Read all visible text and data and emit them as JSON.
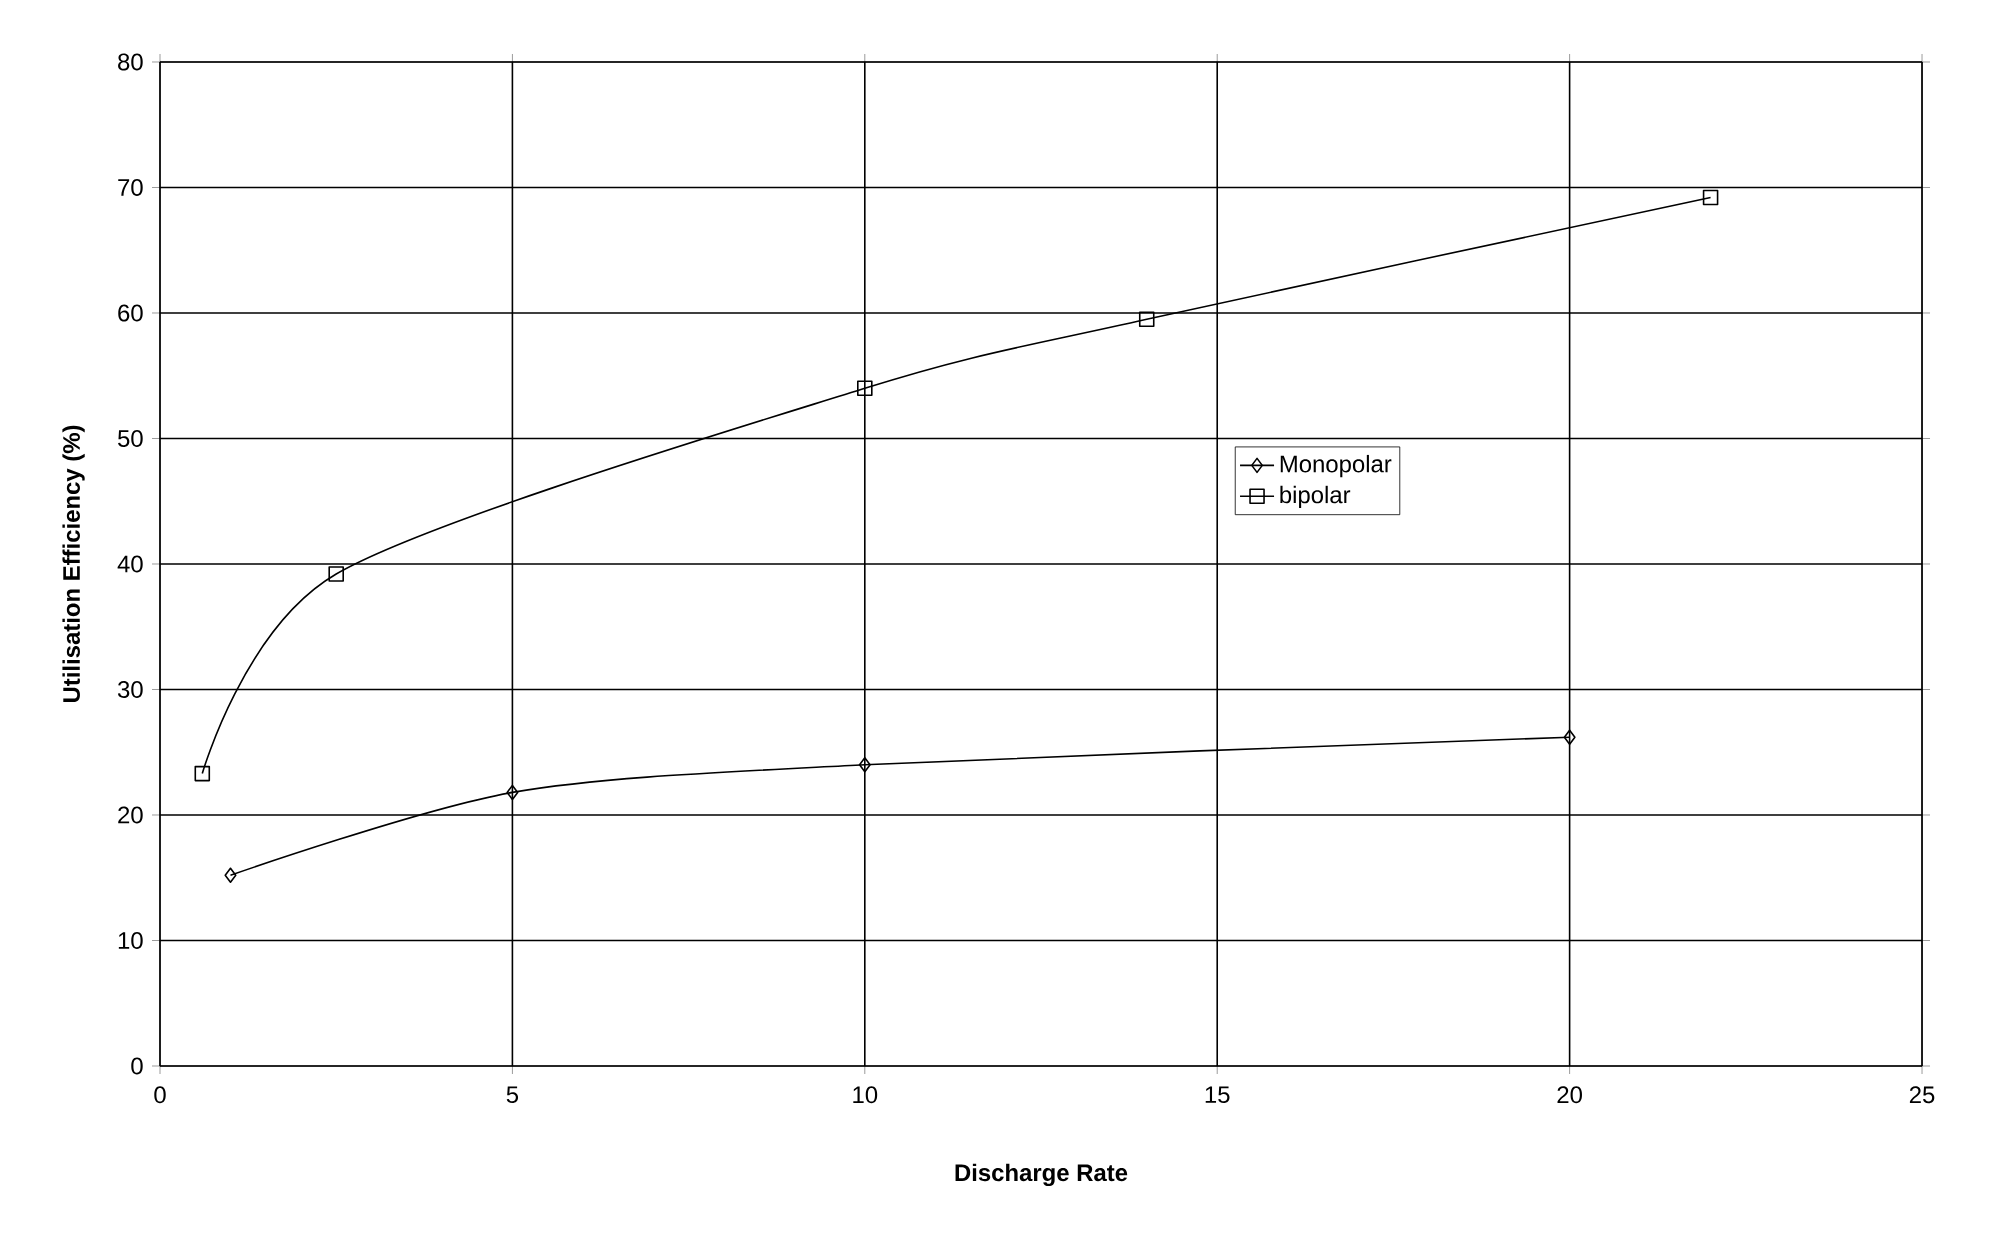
{
  "chart_data": {
    "type": "line",
    "xlabel": "Discharge Rate",
    "ylabel": "Utilisation Efficiency (%)",
    "xlim": [
      0,
      25
    ],
    "xticks": [
      0,
      5,
      10,
      15,
      20,
      25
    ],
    "ylim": [
      0,
      80
    ],
    "yticks": [
      0,
      10,
      20,
      30,
      40,
      50,
      60,
      70,
      80
    ],
    "grid": true,
    "legend": "right",
    "line_style": "solid",
    "series": [
      {
        "name": "Monopolar",
        "color": "#000000",
        "marker": "diamond",
        "x": [
          1,
          5,
          10,
          20
        ],
        "values": [
          15.2,
          21.8,
          24.0,
          26.2
        ]
      },
      {
        "name": "bipolar",
        "color": "#000000",
        "marker": "square",
        "x": [
          0.6,
          2.5,
          10,
          14,
          22
        ],
        "values": [
          23.3,
          39.2,
          54.0,
          59.5,
          69.2
        ]
      }
    ]
  }
}
